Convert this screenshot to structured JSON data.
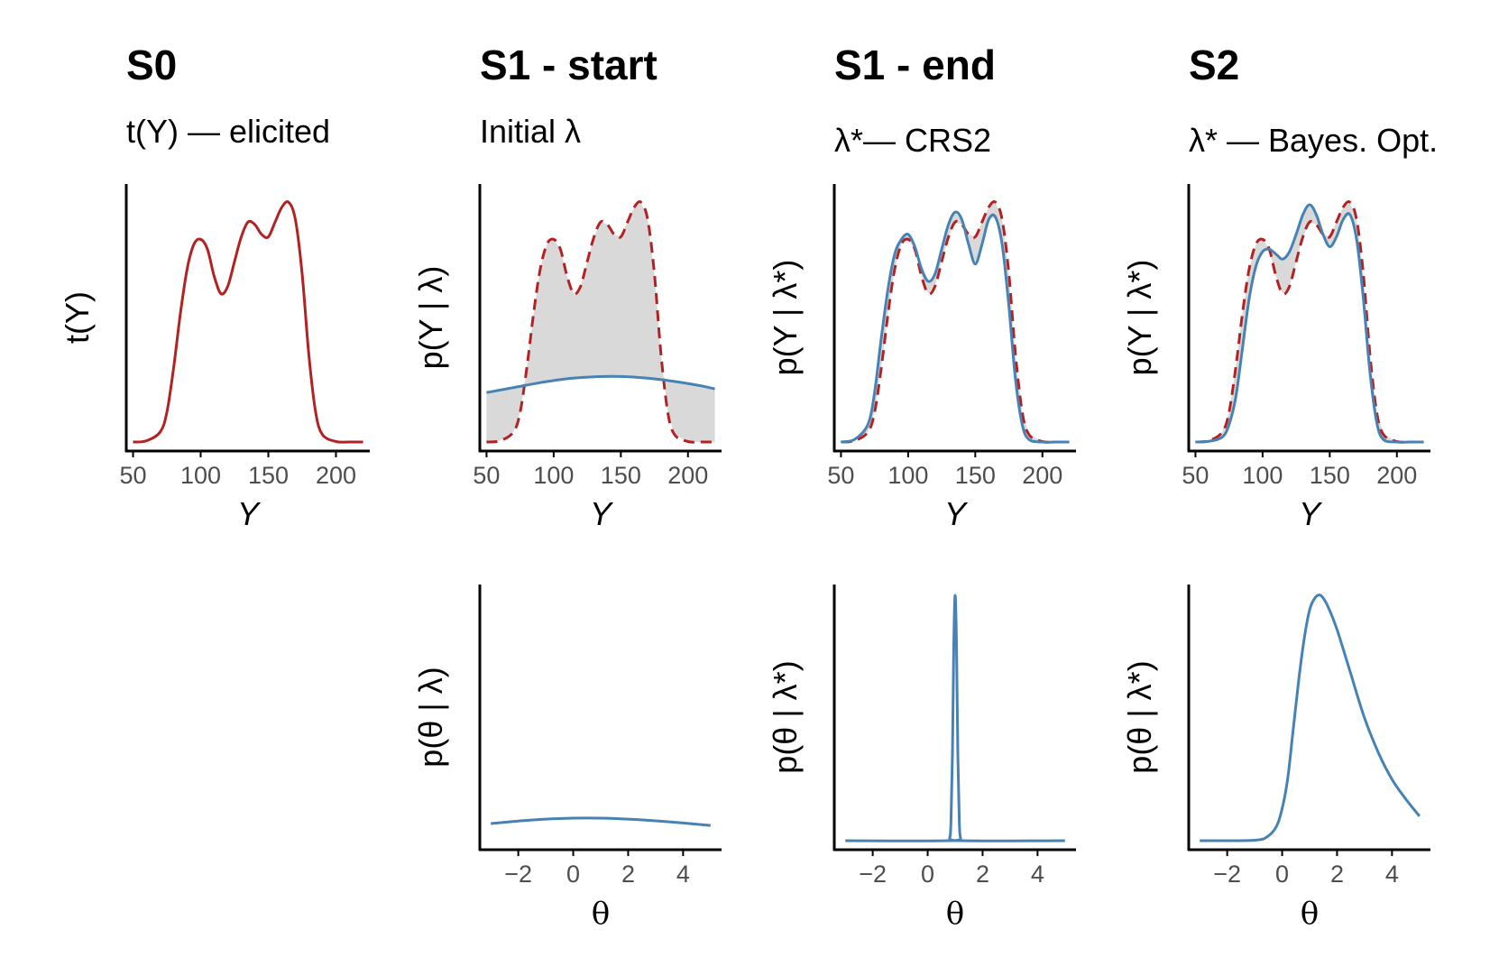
{
  "panels": [
    {
      "id": "S0",
      "title": "S0",
      "subtitle": "t(Y) — elicited"
    },
    {
      "id": "S1-start",
      "title": "S1 - start",
      "subtitle": "Initial λ"
    },
    {
      "id": "S1-end",
      "title": "S1 - end",
      "subtitle": "λ*— CRS2"
    },
    {
      "id": "S2",
      "title": "S2",
      "subtitle": "λ* — Bayes. Opt."
    }
  ],
  "colors": {
    "target": "#b22222",
    "model": "#4682b4",
    "fill": "#d9d9d9",
    "axis": "#000000",
    "tick_text": "#4d4d4d"
  },
  "chart_data": [
    {
      "panel": "S0",
      "type": "line",
      "xlabel": "Y",
      "ylabel": "t(Y)",
      "xlim": [
        45,
        225
      ],
      "xticks": [
        50,
        100,
        150,
        200
      ],
      "series": [
        {
          "role": "target",
          "style": "solid",
          "x": [
            50,
            60,
            70,
            75,
            80,
            85,
            90,
            95,
            100,
            105,
            110,
            115,
            120,
            125,
            130,
            135,
            140,
            145,
            150,
            155,
            160,
            165,
            170,
            175,
            180,
            185,
            190,
            200,
            210,
            220
          ],
          "y": [
            0,
            0.005,
            0.04,
            0.12,
            0.3,
            0.52,
            0.7,
            0.8,
            0.82,
            0.78,
            0.67,
            0.6,
            0.63,
            0.73,
            0.83,
            0.89,
            0.88,
            0.84,
            0.83,
            0.89,
            0.95,
            0.97,
            0.9,
            0.68,
            0.35,
            0.12,
            0.03,
            0.002,
            0,
            0
          ]
        }
      ]
    },
    {
      "panel": "S1-start",
      "type": "area",
      "xlabel": "Y",
      "ylabel": "p(Y | λ)",
      "xlim": [
        45,
        225
      ],
      "xticks": [
        50,
        100,
        150,
        200
      ],
      "series": [
        {
          "role": "target",
          "style": "dashed",
          "x": [
            50,
            60,
            70,
            75,
            80,
            85,
            90,
            95,
            100,
            105,
            110,
            115,
            120,
            125,
            130,
            135,
            140,
            145,
            150,
            155,
            160,
            165,
            170,
            175,
            180,
            185,
            190,
            200,
            210,
            220
          ],
          "y": [
            0,
            0.005,
            0.04,
            0.12,
            0.3,
            0.52,
            0.7,
            0.8,
            0.82,
            0.78,
            0.67,
            0.6,
            0.63,
            0.73,
            0.83,
            0.89,
            0.88,
            0.84,
            0.83,
            0.89,
            0.95,
            0.97,
            0.9,
            0.68,
            0.35,
            0.12,
            0.03,
            0.002,
            0,
            0
          ]
        },
        {
          "role": "model",
          "style": "solid",
          "x": [
            50,
            70,
            90,
            110,
            130,
            150,
            170,
            190,
            210,
            220
          ],
          "y": [
            0.2,
            0.22,
            0.24,
            0.256,
            0.264,
            0.265,
            0.258,
            0.245,
            0.227,
            0.215
          ]
        }
      ]
    },
    {
      "panel": "S1-end",
      "type": "area",
      "xlabel": "Y",
      "ylabel": "p(Y | λ*)",
      "xlim": [
        45,
        225
      ],
      "xticks": [
        50,
        100,
        150,
        200
      ],
      "series": [
        {
          "role": "target",
          "style": "dashed",
          "x": [
            50,
            60,
            70,
            75,
            80,
            85,
            90,
            95,
            100,
            105,
            110,
            115,
            120,
            125,
            130,
            135,
            140,
            145,
            150,
            155,
            160,
            165,
            170,
            175,
            180,
            185,
            190,
            200,
            210,
            220
          ],
          "y": [
            0,
            0.005,
            0.04,
            0.12,
            0.3,
            0.52,
            0.7,
            0.8,
            0.82,
            0.78,
            0.67,
            0.6,
            0.63,
            0.73,
            0.83,
            0.89,
            0.88,
            0.84,
            0.83,
            0.89,
            0.95,
            0.97,
            0.9,
            0.68,
            0.35,
            0.12,
            0.03,
            0.002,
            0,
            0
          ]
        },
        {
          "role": "model",
          "style": "solid",
          "x": [
            50,
            60,
            70,
            75,
            80,
            85,
            90,
            95,
            100,
            105,
            110,
            115,
            120,
            125,
            130,
            135,
            140,
            145,
            150,
            155,
            160,
            165,
            170,
            175,
            180,
            185,
            190,
            200,
            210,
            220
          ],
          "y": [
            0,
            0.01,
            0.07,
            0.2,
            0.42,
            0.62,
            0.76,
            0.82,
            0.84,
            0.79,
            0.7,
            0.65,
            0.68,
            0.78,
            0.88,
            0.93,
            0.9,
            0.8,
            0.72,
            0.8,
            0.9,
            0.91,
            0.8,
            0.55,
            0.25,
            0.07,
            0.01,
            0,
            0,
            0
          ]
        }
      ]
    },
    {
      "panel": "S2",
      "type": "area",
      "xlabel": "Y",
      "ylabel": "p(Y | λ*)",
      "xlim": [
        45,
        225
      ],
      "xticks": [
        50,
        100,
        150,
        200
      ],
      "series": [
        {
          "role": "target",
          "style": "dashed",
          "x": [
            50,
            60,
            70,
            75,
            80,
            85,
            90,
            95,
            100,
            105,
            110,
            115,
            120,
            125,
            130,
            135,
            140,
            145,
            150,
            155,
            160,
            165,
            170,
            175,
            180,
            185,
            190,
            200,
            210,
            220
          ],
          "y": [
            0,
            0.005,
            0.04,
            0.12,
            0.3,
            0.52,
            0.7,
            0.8,
            0.82,
            0.78,
            0.67,
            0.6,
            0.63,
            0.73,
            0.83,
            0.89,
            0.88,
            0.84,
            0.83,
            0.89,
            0.95,
            0.97,
            0.9,
            0.68,
            0.35,
            0.12,
            0.03,
            0.002,
            0,
            0
          ]
        },
        {
          "role": "model",
          "style": "solid",
          "x": [
            50,
            60,
            70,
            75,
            80,
            85,
            90,
            95,
            100,
            105,
            110,
            115,
            120,
            125,
            130,
            135,
            140,
            145,
            150,
            155,
            160,
            165,
            170,
            175,
            180,
            185,
            190,
            200,
            210,
            220
          ],
          "y": [
            0,
            0.003,
            0.02,
            0.07,
            0.18,
            0.38,
            0.58,
            0.71,
            0.77,
            0.78,
            0.76,
            0.74,
            0.77,
            0.84,
            0.92,
            0.96,
            0.92,
            0.84,
            0.79,
            0.83,
            0.9,
            0.92,
            0.82,
            0.58,
            0.28,
            0.08,
            0.01,
            0,
            0,
            0
          ]
        }
      ]
    },
    {
      "panel": "S1-start",
      "type": "line",
      "xlabel": "θ",
      "ylabel": "p(θ | λ)",
      "xlim": [
        -3.4,
        5.4
      ],
      "xticks": [
        -2,
        0,
        2,
        4
      ],
      "series": [
        {
          "role": "model",
          "style": "solid",
          "x": [
            -3,
            -2,
            -1,
            0,
            1,
            2,
            3,
            4,
            5
          ],
          "y": [
            0.07,
            0.08,
            0.088,
            0.092,
            0.092,
            0.088,
            0.081,
            0.072,
            0.062
          ]
        }
      ]
    },
    {
      "panel": "S1-end",
      "type": "line",
      "xlabel": "θ",
      "ylabel": "p(θ | λ*)",
      "xlim": [
        -3.4,
        5.4
      ],
      "xticks": [
        -2,
        0,
        2,
        4
      ],
      "series": [
        {
          "role": "model",
          "style": "solid",
          "x": [
            -3,
            0.7,
            0.8,
            0.85,
            0.9,
            0.95,
            1.0,
            1.05,
            1.1,
            1.15,
            1.2,
            1.3,
            5
          ],
          "y": [
            0,
            0,
            0.01,
            0.08,
            0.35,
            0.8,
            1.0,
            0.8,
            0.35,
            0.08,
            0.01,
            0,
            0
          ]
        }
      ]
    },
    {
      "panel": "S2",
      "type": "line",
      "xlabel": "θ",
      "ylabel": "p(θ | λ*)",
      "xlim": [
        -3.4,
        5.4
      ],
      "xticks": [
        -2,
        0,
        2,
        4
      ],
      "series": [
        {
          "role": "model",
          "style": "solid",
          "x": [
            -3,
            -1,
            -0.5,
            -0.2,
            0,
            0.2,
            0.4,
            0.6,
            0.8,
            1.0,
            1.2,
            1.4,
            1.6,
            1.8,
            2.0,
            2.2,
            2.5,
            3,
            3.5,
            4,
            4.5,
            5
          ],
          "y": [
            0,
            0.002,
            0.02,
            0.06,
            0.13,
            0.25,
            0.45,
            0.65,
            0.82,
            0.94,
            0.99,
            1.0,
            0.97,
            0.92,
            0.86,
            0.79,
            0.68,
            0.5,
            0.36,
            0.25,
            0.17,
            0.1
          ]
        }
      ]
    }
  ]
}
